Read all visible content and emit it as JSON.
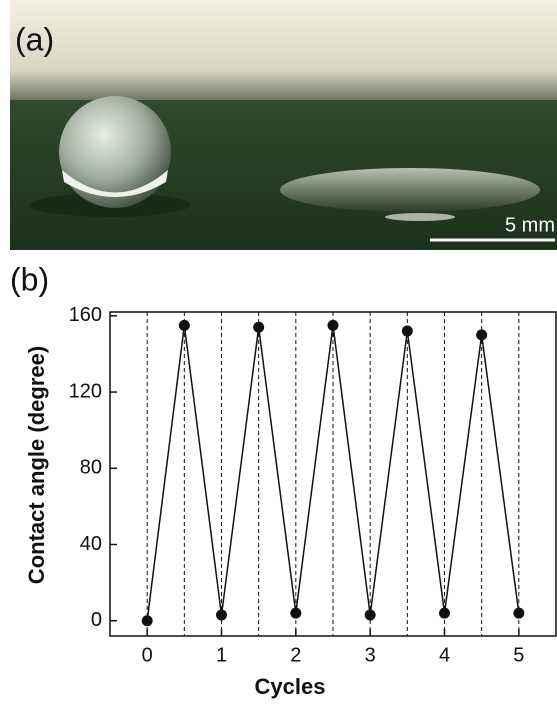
{
  "photo": {
    "label": "(a)",
    "scale_bar": "5 mm"
  },
  "chart_data": {
    "type": "line",
    "panel_label": "(b)",
    "xlabel": "Cycles",
    "ylabel": "Contact angle (degree)",
    "x": [
      0,
      0.5,
      1,
      1.5,
      2,
      2.5,
      3,
      3.5,
      4,
      4.5,
      5
    ],
    "values": [
      0,
      155,
      3,
      154,
      4,
      155,
      3,
      152,
      4,
      150,
      4
    ],
    "color": "#111111",
    "xlim": [
      -0.5,
      5.5
    ],
    "xticks": [
      0,
      1,
      2,
      3,
      4,
      5
    ],
    "ylim": [
      -8,
      162
    ],
    "yticks": [
      0,
      40,
      80,
      120,
      160
    ],
    "dashed_verticals": true
  }
}
